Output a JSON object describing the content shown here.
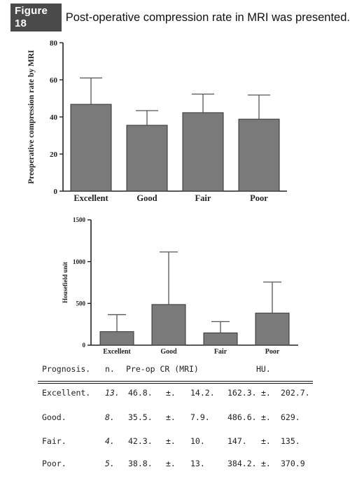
{
  "figure": {
    "badge": "Figure 18",
    "caption": "Post-operative compression rate in MRI was presented."
  },
  "chart_data": [
    {
      "type": "bar",
      "categories": [
        "Excellent",
        "Good",
        "Fair",
        "Poor"
      ],
      "values": [
        46.8,
        35.5,
        42.3,
        38.8
      ],
      "error_upper": [
        14.2,
        7.9,
        10,
        13
      ],
      "ylabel": "Preoperative compression rate by MRI",
      "xlabel": "",
      "ylim": [
        0,
        80
      ],
      "yticks": [
        0,
        20,
        40,
        60,
        80
      ],
      "bar_color": "#7a7a7a"
    },
    {
      "type": "bar",
      "categories": [
        "Excellent",
        "Good",
        "Fair",
        "Poor"
      ],
      "values": [
        162.3,
        486.6,
        147,
        384.2
      ],
      "error_upper": [
        202.7,
        629,
        135,
        370.9
      ],
      "ylabel": "Housefield unit",
      "xlabel": "",
      "ylim": [
        0,
        1500
      ],
      "yticks": [
        0,
        500,
        1000,
        1500
      ],
      "bar_color": "#7a7a7a"
    }
  ],
  "table": {
    "headers": [
      "Prognosis.",
      "n.",
      "Pre-op CR (MRI)",
      "HU."
    ],
    "rows": [
      {
        "prognosis": "Excellent.",
        "n": "13.",
        "cr_mean": "46.8.",
        "cr_pm": "±.",
        "cr_sd": "14.2.",
        "hu_mean": "162.3.",
        "hu_pm": "±.",
        "hu_sd": "202.7."
      },
      {
        "prognosis": "Good.",
        "n": "8.",
        "cr_mean": "35.5.",
        "cr_pm": "±.",
        "cr_sd": "7.9.",
        "hu_mean": "486.6.",
        "hu_pm": "±.",
        "hu_sd": "629."
      },
      {
        "prognosis": "Fair.",
        "n": "4.",
        "cr_mean": "42.3.",
        "cr_pm": "±.",
        "cr_sd": "10.",
        "hu_mean": "147.",
        "hu_pm": "±.",
        "hu_sd": "135."
      },
      {
        "prognosis": "Poor.",
        "n": "5.",
        "cr_mean": "38.8.",
        "cr_pm": "±.",
        "cr_sd": "13.",
        "hu_mean": "384.2.",
        "hu_pm": "±.",
        "hu_sd": "370.9"
      }
    ]
  }
}
